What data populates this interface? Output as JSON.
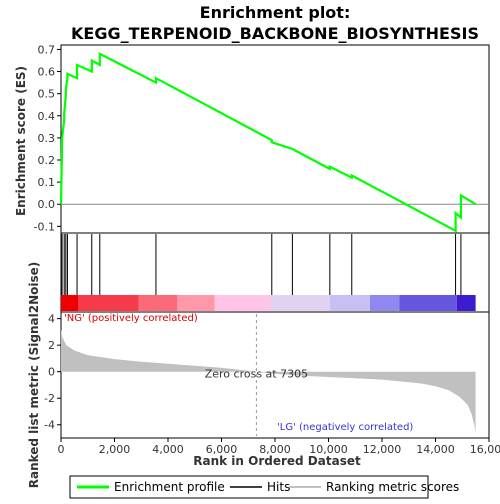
{
  "chart_data": {
    "type": "line",
    "title_line1": "Enrichment plot:",
    "title_line2": "KEGG_TERPENOID_BACKBONE_BIOSYNTHESIS",
    "es_panel": {
      "ylabel": "Enrichment score (ES)",
      "ylim": [
        -0.13,
        0.72
      ],
      "yticks": [
        -0.1,
        0.0,
        0.1,
        0.2,
        0.3,
        0.4,
        0.5,
        0.6,
        0.7
      ],
      "ytick_labels": [
        "-0.1",
        "0.0",
        "0.1",
        "0.2",
        "0.3",
        "0.4",
        "0.5",
        "0.6",
        "0.7"
      ],
      "color": "#00ff00",
      "series": {
        "name": "Enrichment profile",
        "x": [
          0,
          40,
          40,
          120,
          120,
          180,
          180,
          240,
          240,
          600,
          600,
          1150,
          1150,
          1450,
          1450,
          3550,
          3550,
          7880,
          7880,
          8650,
          8650,
          10050,
          10050,
          10870,
          10870,
          14750,
          14750,
          14950,
          14950,
          15500
        ],
        "y": [
          0.0,
          0.28,
          0.3,
          0.38,
          0.41,
          0.49,
          0.52,
          0.57,
          0.59,
          0.57,
          0.63,
          0.6,
          0.65,
          0.63,
          0.68,
          0.55,
          0.57,
          0.29,
          0.28,
          0.25,
          0.25,
          0.16,
          0.17,
          0.12,
          0.13,
          -0.12,
          -0.04,
          -0.06,
          0.04,
          0.0
        ]
      }
    },
    "hits": {
      "name": "Hits",
      "x": [
        40,
        120,
        180,
        240,
        600,
        1150,
        1450,
        3550,
        7880,
        8650,
        10050,
        10870,
        14750,
        14950
      ]
    },
    "ranked_panel": {
      "ylabel": "Ranked list metric (Signal2Noise)",
      "ylim": [
        -5,
        4.5
      ],
      "yticks": [
        -4,
        -2,
        0,
        2,
        4
      ],
      "ytick_labels": [
        "-4",
        "-2",
        "0",
        "2",
        "4"
      ],
      "series_name": "Ranking metric scores",
      "x": [
        0,
        50,
        200,
        500,
        1000,
        2000,
        3000,
        4000,
        5000,
        6000,
        7305,
        8000,
        9000,
        10000,
        11000,
        12000,
        13000,
        13500,
        14000,
        14500,
        14900,
        15200,
        15350,
        15450,
        15500
      ],
      "y": [
        3.2,
        2.6,
        2.0,
        1.6,
        1.25,
        0.95,
        0.75,
        0.6,
        0.45,
        0.3,
        0.0,
        -0.15,
        -0.3,
        -0.4,
        -0.5,
        -0.6,
        -0.8,
        -0.9,
        -1.1,
        -1.4,
        -1.9,
        -2.5,
        -3.2,
        -4.0,
        -4.6
      ],
      "zero_cross_text": "Zero cross at 7305",
      "zero_cross_x": 7305,
      "pos_label": "'NG' (positively correlated)",
      "neg_label": "'LG' (negatively correlated)"
    },
    "xaxis": {
      "xlabel": "Rank in Ordered Dataset",
      "xlim": [
        0,
        16000
      ],
      "xticks": [
        0,
        2000,
        4000,
        6000,
        8000,
        10000,
        12000,
        14000,
        16000
      ],
      "xtick_labels": [
        "0",
        "2,000",
        "4,000",
        "6,000",
        "8,000",
        "10,000",
        "12,000",
        "14,000",
        "16,000"
      ]
    },
    "heatmap_bar": {
      "segments": [
        {
          "from": 0,
          "to": 650,
          "color": "#ee0000"
        },
        {
          "from": 650,
          "to": 2900,
          "color": "#f53a4a"
        },
        {
          "from": 2900,
          "to": 4350,
          "color": "#fb6a7a"
        },
        {
          "from": 4350,
          "to": 5750,
          "color": "#ff99aa"
        },
        {
          "from": 5750,
          "to": 7850,
          "color": "#ffc4e8"
        },
        {
          "from": 7850,
          "to": 10050,
          "color": "#e2d2f2"
        },
        {
          "from": 10050,
          "to": 11550,
          "color": "#c8c0f4"
        },
        {
          "from": 11550,
          "to": 12650,
          "color": "#8f88ee"
        },
        {
          "from": 12650,
          "to": 14800,
          "color": "#6655dd"
        },
        {
          "from": 14800,
          "to": 15500,
          "color": "#3c1ccc"
        }
      ]
    },
    "legend": {
      "items": [
        {
          "label": "Enrichment profile",
          "color": "#00ff00"
        },
        {
          "label": "Hits",
          "color": "#000000"
        },
        {
          "label": "Ranking metric scores",
          "color": "#c0c0c0"
        }
      ]
    }
  }
}
